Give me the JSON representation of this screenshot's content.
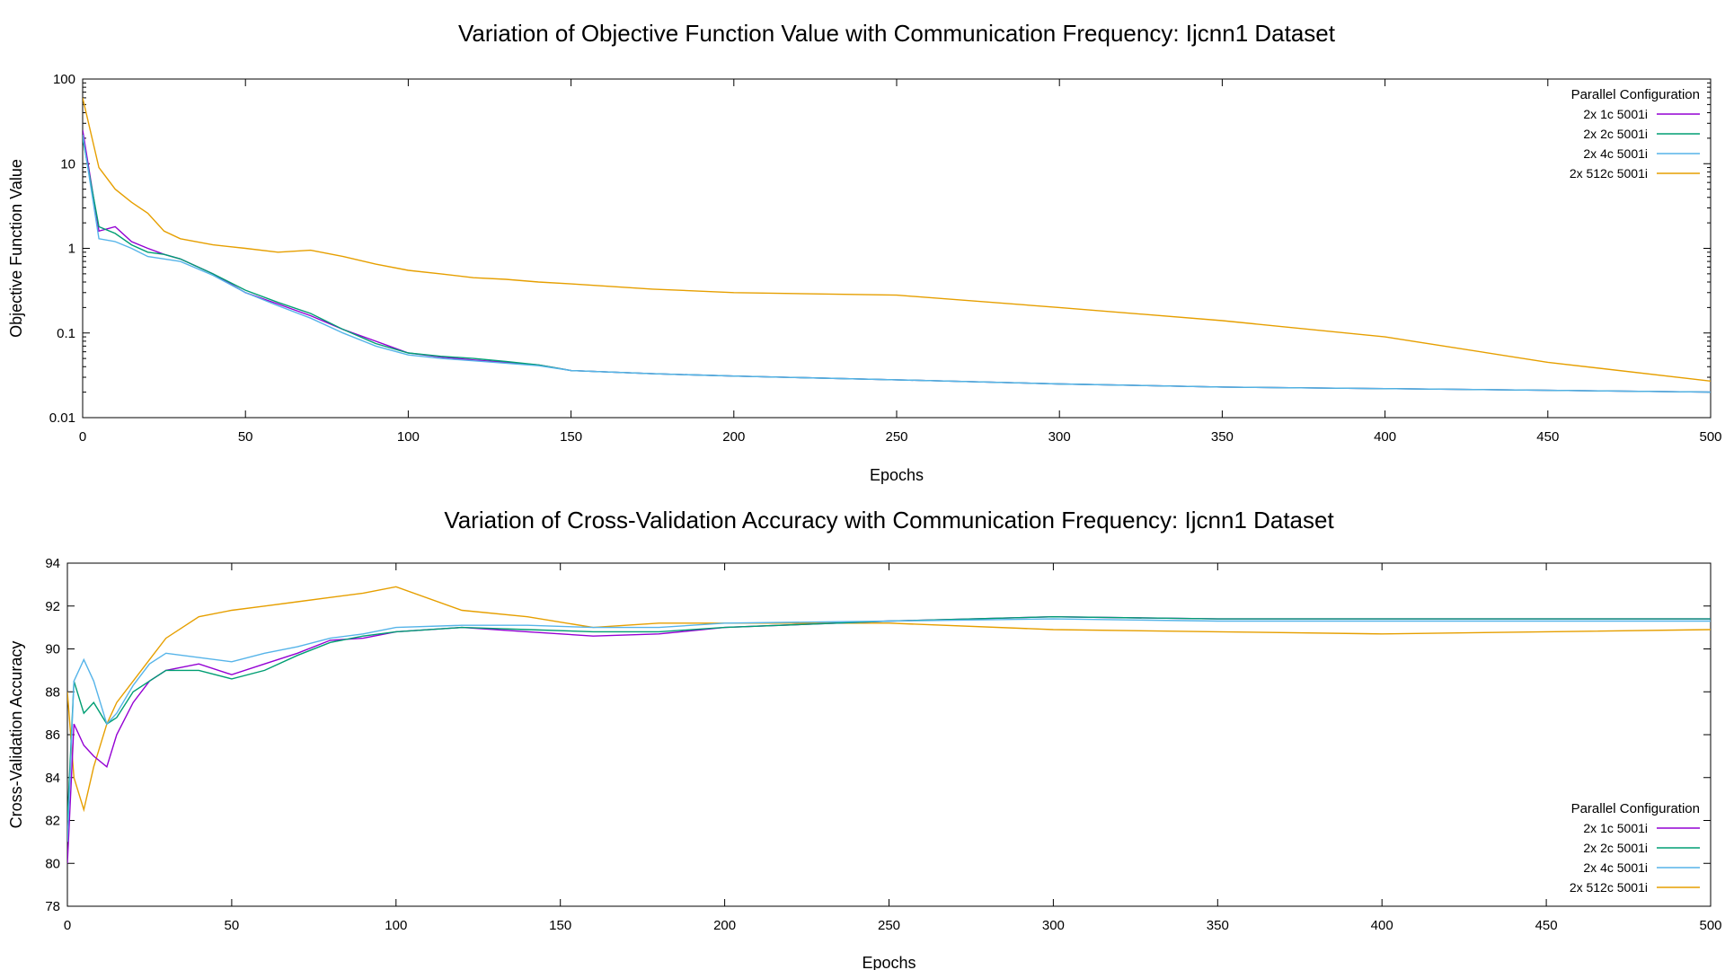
{
  "chart_data": [
    {
      "type": "line",
      "title": "Variation of Objective Function Value with Communication Frequency: Ijcnn1 Dataset",
      "xlabel": "Epochs",
      "ylabel": "Objective Function Value",
      "xlim": [
        0,
        500
      ],
      "ylim": [
        0.01,
        100
      ],
      "yscale": "log",
      "xticks": [
        "0",
        "50",
        "100",
        "150",
        "200",
        "250",
        "300",
        "350",
        "400",
        "450",
        "500"
      ],
      "yticks": [
        "0.01",
        "0.1",
        "1",
        "10",
        "100"
      ],
      "legend_title": "Parallel Configuration",
      "legend_position": "top-right",
      "grid": false,
      "x": [
        0,
        5,
        10,
        15,
        20,
        25,
        30,
        40,
        50,
        60,
        70,
        80,
        90,
        100,
        110,
        120,
        130,
        140,
        150,
        175,
        200,
        250,
        300,
        350,
        400,
        450,
        500
      ],
      "series": [
        {
          "name": "2x 1c 5001i",
          "color": "#9400d3",
          "values": [
            25,
            1.6,
            1.8,
            1.2,
            1.0,
            0.85,
            0.75,
            0.5,
            0.3,
            0.22,
            0.16,
            0.11,
            0.08,
            0.058,
            0.052,
            0.048,
            0.045,
            0.042,
            0.036,
            0.033,
            0.031,
            0.028,
            0.025,
            0.023,
            0.022,
            0.021,
            0.02
          ]
        },
        {
          "name": "2x 2c 5001i",
          "color": "#009e73",
          "values": [
            20,
            1.8,
            1.5,
            1.1,
            0.9,
            0.85,
            0.75,
            0.5,
            0.32,
            0.23,
            0.17,
            0.11,
            0.075,
            0.058,
            0.053,
            0.05,
            0.046,
            0.042,
            0.036,
            0.033,
            0.031,
            0.028,
            0.025,
            0.023,
            0.022,
            0.021,
            0.02
          ]
        },
        {
          "name": "2x 4c 5001i",
          "color": "#56b4e9",
          "values": [
            22,
            1.3,
            1.2,
            1.0,
            0.8,
            0.75,
            0.7,
            0.48,
            0.3,
            0.21,
            0.15,
            0.1,
            0.07,
            0.055,
            0.05,
            0.047,
            0.044,
            0.041,
            0.036,
            0.033,
            0.031,
            0.028,
            0.025,
            0.023,
            0.022,
            0.021,
            0.02
          ]
        },
        {
          "name": "2x 512c 5001i",
          "color": "#e69f00",
          "values": [
            60,
            9,
            5,
            3.5,
            2.6,
            1.6,
            1.3,
            1.1,
            1.0,
            0.9,
            0.95,
            0.8,
            0.65,
            0.55,
            0.5,
            0.45,
            0.43,
            0.4,
            0.38,
            0.33,
            0.3,
            0.28,
            0.2,
            0.14,
            0.09,
            0.045,
            0.027
          ]
        }
      ]
    },
    {
      "type": "line",
      "title": "Variation of Cross-Validation Accuracy with Communication Frequency: Ijcnn1 Dataset",
      "xlabel": "Epochs",
      "ylabel": "Cross-Validation Accuracy",
      "xlim": [
        0,
        500
      ],
      "ylim": [
        78,
        94
      ],
      "yscale": "linear",
      "xticks": [
        "0",
        "50",
        "100",
        "150",
        "200",
        "250",
        "300",
        "350",
        "400",
        "450",
        "500"
      ],
      "yticks": [
        "78",
        "80",
        "82",
        "84",
        "86",
        "88",
        "90",
        "92",
        "94"
      ],
      "legend_title": "Parallel Configuration",
      "legend_position": "bottom-right",
      "grid": false,
      "x": [
        0,
        2,
        5,
        8,
        12,
        15,
        20,
        25,
        30,
        40,
        50,
        60,
        70,
        80,
        90,
        100,
        120,
        140,
        160,
        180,
        200,
        250,
        300,
        350,
        400,
        450,
        500
      ],
      "series": [
        {
          "name": "2x 1c 5001i",
          "color": "#9400d3",
          "values": [
            80,
            86.5,
            85.5,
            85.0,
            84.5,
            86.0,
            87.5,
            88.5,
            89.0,
            89.3,
            88.8,
            89.3,
            89.8,
            90.4,
            90.5,
            90.8,
            91.0,
            90.8,
            90.6,
            90.7,
            91.0,
            91.3,
            91.5,
            91.4,
            91.4,
            91.4,
            91.4
          ]
        },
        {
          "name": "2x 2c 5001i",
          "color": "#009e73",
          "values": [
            82,
            88.5,
            87.0,
            87.5,
            86.5,
            86.8,
            88.0,
            88.5,
            89.0,
            89.0,
            88.6,
            89.0,
            89.7,
            90.3,
            90.6,
            90.8,
            91.0,
            90.9,
            90.8,
            90.8,
            91.0,
            91.3,
            91.5,
            91.4,
            91.4,
            91.4,
            91.4
          ]
        },
        {
          "name": "2x 4c 5001i",
          "color": "#56b4e9",
          "values": [
            81,
            88.5,
            89.5,
            88.5,
            86.5,
            87.0,
            88.3,
            89.3,
            89.8,
            89.6,
            89.4,
            89.8,
            90.1,
            90.5,
            90.7,
            91.0,
            91.1,
            91.1,
            91.0,
            91.0,
            91.2,
            91.3,
            91.4,
            91.3,
            91.3,
            91.3,
            91.3
          ]
        },
        {
          "name": "2x 512c 5001i",
          "color": "#e69f00",
          "values": [
            88,
            84,
            82.5,
            84.5,
            86.5,
            87.5,
            88.5,
            89.5,
            90.5,
            91.5,
            91.8,
            92.0,
            92.2,
            92.4,
            92.6,
            92.9,
            91.8,
            91.5,
            91.0,
            91.2,
            91.2,
            91.2,
            90.9,
            90.8,
            90.7,
            90.8,
            90.9
          ]
        }
      ]
    }
  ]
}
